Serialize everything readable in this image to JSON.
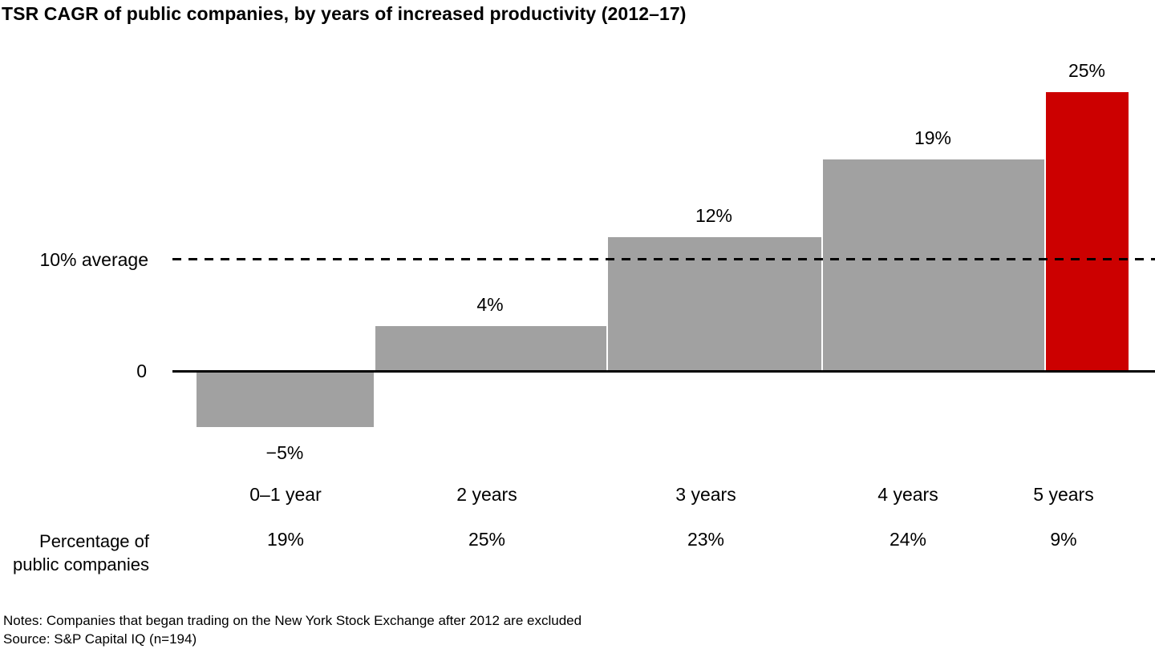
{
  "title": "TSR CAGR of public companies, by years of increased productivity (2012–17)",
  "chart_data": {
    "type": "bar",
    "title": "TSR CAGR of public companies, by years of increased productivity (2012–17)",
    "categories": [
      "0–1 year",
      "2 years",
      "3 years",
      "4 years",
      "5 years"
    ],
    "series": [
      {
        "name": "TSR CAGR",
        "values": [
          -5,
          4,
          12,
          19,
          25
        ],
        "labels": [
          "−5%",
          "4%",
          "12%",
          "19%",
          "25%"
        ]
      },
      {
        "name": "Percentage of public companies",
        "values": [
          19,
          25,
          23,
          24,
          9
        ],
        "labels": [
          "19%",
          "25%",
          "23%",
          "24%",
          "9%"
        ]
      }
    ],
    "bar_widths_follow_share": true,
    "highlight_index": 4,
    "bar_color": "#A1A1A1",
    "highlight_color": "#CC0000",
    "average_line": {
      "value": 10,
      "label": "10% average"
    },
    "zero_label": "0",
    "ylim": [
      -8,
      28
    ],
    "grid": false,
    "legend": "none"
  },
  "row_label": {
    "line1": "Percentage of",
    "line2": "public companies"
  },
  "footer": {
    "notes": "Notes: Companies that began trading on the New York Stock Exchange after 2012 are excluded",
    "source": "Source: S&P Capital IQ (n=194)"
  }
}
